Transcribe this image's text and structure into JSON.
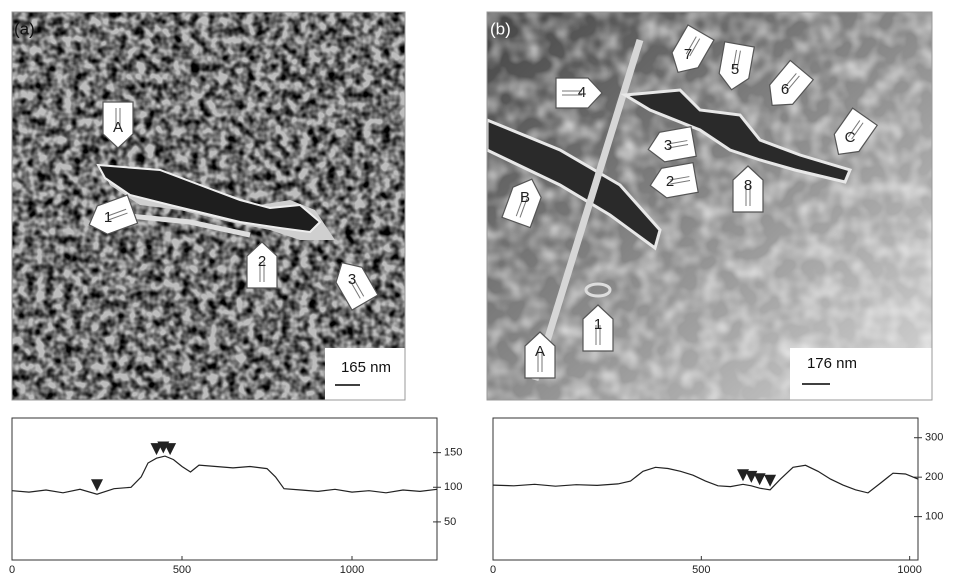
{
  "panels": [
    {
      "label": "(a)",
      "scale_bar": "165 nm",
      "arrows": [
        "A",
        "1",
        "2",
        "3"
      ],
      "profile": {
        "type": "line",
        "x": [
          0,
          50,
          100,
          150,
          200,
          250,
          300,
          350,
          380,
          400,
          425,
          450,
          475,
          500,
          525,
          550,
          600,
          650,
          700,
          750,
          775,
          800,
          850,
          900,
          950,
          1000,
          1050,
          1100,
          1150,
          1200,
          1250
        ],
        "values": [
          95,
          93,
          96,
          92,
          97,
          90,
          98,
          100,
          115,
          135,
          142,
          145,
          140,
          130,
          122,
          132,
          130,
          128,
          130,
          127,
          115,
          98,
          96,
          94,
          97,
          93,
          95,
          92,
          96,
          94,
          97
        ],
        "xlim": [
          0,
          1250
        ],
        "ylim": [
          -5,
          200
        ],
        "xticks": [
          0,
          500,
          1000
        ],
        "yticks": [
          50,
          100,
          150
        ],
        "markers_x": [
          250,
          425,
          445,
          465
        ]
      }
    },
    {
      "label": "(b)",
      "scale_bar": "176 nm",
      "arrows": [
        "A",
        "1",
        "B",
        "4",
        "7",
        "5",
        "6",
        "C",
        "3",
        "2",
        "8"
      ],
      "profile": {
        "type": "line",
        "x": [
          0,
          50,
          100,
          150,
          200,
          250,
          300,
          330,
          360,
          390,
          420,
          450,
          480,
          510,
          540,
          570,
          600,
          620,
          640,
          665,
          690,
          720,
          750,
          780,
          810,
          840,
          870,
          900,
          930,
          960,
          990,
          1020
        ],
        "values": [
          180,
          178,
          182,
          177,
          181,
          179,
          183,
          190,
          215,
          225,
          222,
          215,
          205,
          190,
          178,
          176,
          182,
          178,
          172,
          168,
          195,
          225,
          230,
          215,
          195,
          180,
          168,
          160,
          185,
          210,
          208,
          195
        ],
        "xlim": [
          0,
          1020
        ],
        "ylim": [
          -10,
          350
        ],
        "xticks": [
          0,
          500,
          1000
        ],
        "yticks": [
          100,
          200,
          300
        ],
        "markers_x": [
          600,
          620,
          640,
          665
        ]
      }
    }
  ]
}
